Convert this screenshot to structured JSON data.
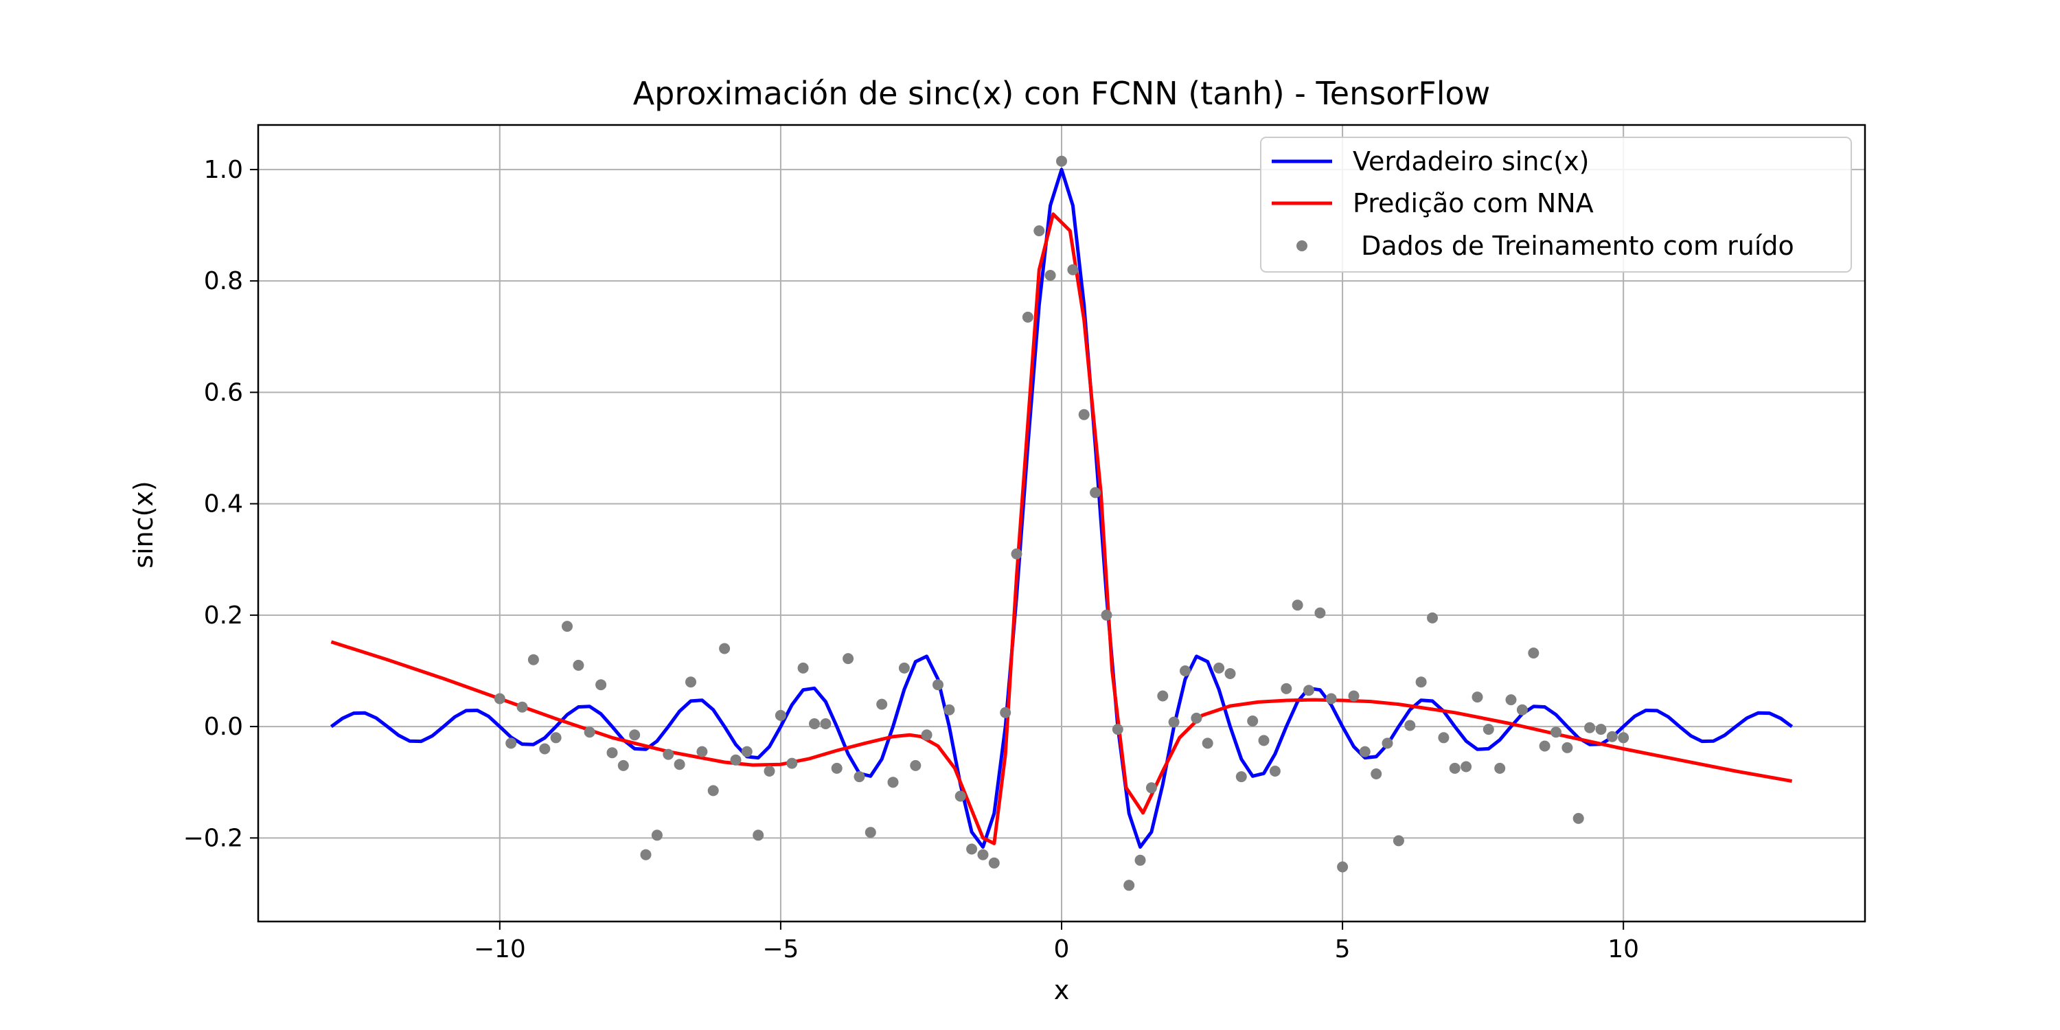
{
  "chart_data": {
    "type": "line",
    "title": "Aproximación de sinc(x) con FCNN (tanh) - TensorFlow",
    "xlabel": "x",
    "ylabel": "sinc(x)",
    "xlim": [
      -14.3,
      14.3
    ],
    "ylim": [
      -0.35,
      1.08
    ],
    "xticks": [
      -10,
      -5,
      0,
      5,
      10
    ],
    "xtick_labels": [
      "−10",
      "−5",
      "0",
      "5",
      "10"
    ],
    "yticks": [
      -0.2,
      0.0,
      0.2,
      0.4,
      0.6,
      0.8,
      1.0
    ],
    "ytick_labels": [
      "−0.2",
      "0.0",
      "0.2",
      "0.4",
      "0.6",
      "0.8",
      "1.0"
    ],
    "grid": true,
    "legend_position": "top-right",
    "series": [
      {
        "name": "Verdadeiro sinc(x)",
        "kind": "line",
        "color": "#0000ff",
        "function": "sin(pi*x)/(pi*x)",
        "x_range": [
          -13,
          13
        ],
        "points": 131
      },
      {
        "name": "Predição com NNA",
        "kind": "line",
        "color": "#ff0000",
        "x": [
          -13,
          -12,
          -11,
          -10,
          -9,
          -8,
          -7,
          -6,
          -5.5,
          -5,
          -4.5,
          -4,
          -3.5,
          -3,
          -2.7,
          -2.5,
          -2.2,
          -1.9,
          -1.6,
          -1.4,
          -1.2,
          -1.0,
          -0.8,
          -0.4,
          -0.15,
          0.15,
          0.4,
          0.7,
          0.9,
          1.15,
          1.45,
          1.8,
          2.1,
          2.5,
          3.0,
          3.5,
          4.0,
          4.5,
          5.0,
          5.5,
          6,
          7,
          8,
          9,
          10,
          11,
          12,
          13
        ],
        "y": [
          0.152,
          0.12,
          0.086,
          0.05,
          0.014,
          -0.02,
          -0.045,
          -0.064,
          -0.069,
          -0.068,
          -0.058,
          -0.043,
          -0.03,
          -0.018,
          -0.015,
          -0.018,
          -0.035,
          -0.075,
          -0.15,
          -0.2,
          -0.21,
          -0.05,
          0.27,
          0.82,
          0.92,
          0.89,
          0.73,
          0.42,
          0.1,
          -0.11,
          -0.155,
          -0.08,
          -0.02,
          0.02,
          0.037,
          0.044,
          0.047,
          0.048,
          0.047,
          0.045,
          0.04,
          0.025,
          0.005,
          -0.018,
          -0.04,
          -0.06,
          -0.08,
          -0.098
        ]
      },
      {
        "name": " Dados de Treinamento com ruído",
        "kind": "scatter",
        "color": "#808080",
        "x": [
          -10.0,
          -9.8,
          -9.6,
          -9.4,
          -9.2,
          -9.0,
          -8.8,
          -8.6,
          -8.4,
          -8.2,
          -8.0,
          -7.8,
          -7.6,
          -7.4,
          -7.2,
          -7.0,
          -6.8,
          -6.6,
          -6.4,
          -6.2,
          -6.0,
          -5.8,
          -5.6,
          -5.4,
          -5.2,
          -5.0,
          -4.8,
          -4.6,
          -4.4,
          -4.2,
          -4.0,
          -3.8,
          -3.6,
          -3.4,
          -3.2,
          -3.0,
          -2.8,
          -2.6,
          -2.4,
          -2.2,
          -2.0,
          -1.8,
          -1.6,
          -1.4,
          -1.2,
          -1.0,
          -0.8,
          -0.6,
          -0.4,
          -0.2,
          0.0,
          0.2,
          0.4,
          0.6,
          0.8,
          1.0,
          1.2,
          1.4,
          1.6,
          1.8,
          2.0,
          2.2,
          2.4,
          2.6,
          2.8,
          3.0,
          3.2,
          3.4,
          3.6,
          3.8,
          4.0,
          4.2,
          4.4,
          4.6,
          4.8,
          5.0,
          5.2,
          5.4,
          5.6,
          5.8,
          6.0,
          6.2,
          6.4,
          6.6,
          6.8,
          7.0,
          7.2,
          7.4,
          7.6,
          7.8,
          8.0,
          8.2,
          8.4,
          8.6,
          8.8,
          9.0,
          9.2,
          9.4,
          9.6,
          9.8,
          10.0
        ],
        "y": [
          0.05,
          -0.03,
          0.035,
          0.12,
          -0.04,
          -0.02,
          0.18,
          0.11,
          -0.01,
          0.075,
          -0.047,
          -0.07,
          -0.015,
          -0.23,
          -0.195,
          -0.05,
          -0.068,
          0.08,
          -0.045,
          -0.115,
          0.14,
          -0.06,
          -0.045,
          -0.195,
          -0.08,
          0.02,
          -0.066,
          0.105,
          0.005,
          0.005,
          -0.075,
          0.122,
          -0.09,
          -0.19,
          0.04,
          -0.1,
          0.105,
          -0.07,
          -0.015,
          0.075,
          0.03,
          -0.125,
          -0.22,
          -0.23,
          -0.245,
          0.025,
          0.31,
          0.735,
          0.89,
          0.81,
          1.015,
          0.82,
          0.56,
          0.42,
          0.2,
          -0.005,
          -0.285,
          -0.24,
          -0.11,
          0.055,
          0.008,
          0.1,
          0.015,
          -0.03,
          0.105,
          0.095,
          -0.09,
          0.01,
          -0.025,
          -0.08,
          0.068,
          0.218,
          0.065,
          0.204,
          0.05,
          -0.252,
          0.055,
          -0.045,
          -0.085,
          -0.03,
          -0.205,
          0.002,
          0.08,
          0.195,
          -0.02,
          -0.075,
          -0.072,
          0.053,
          -0.005,
          -0.075,
          0.048,
          0.03,
          0.132,
          -0.035,
          -0.01,
          -0.038,
          -0.165,
          -0.002,
          -0.005,
          -0.018,
          -0.02
        ]
      }
    ]
  }
}
